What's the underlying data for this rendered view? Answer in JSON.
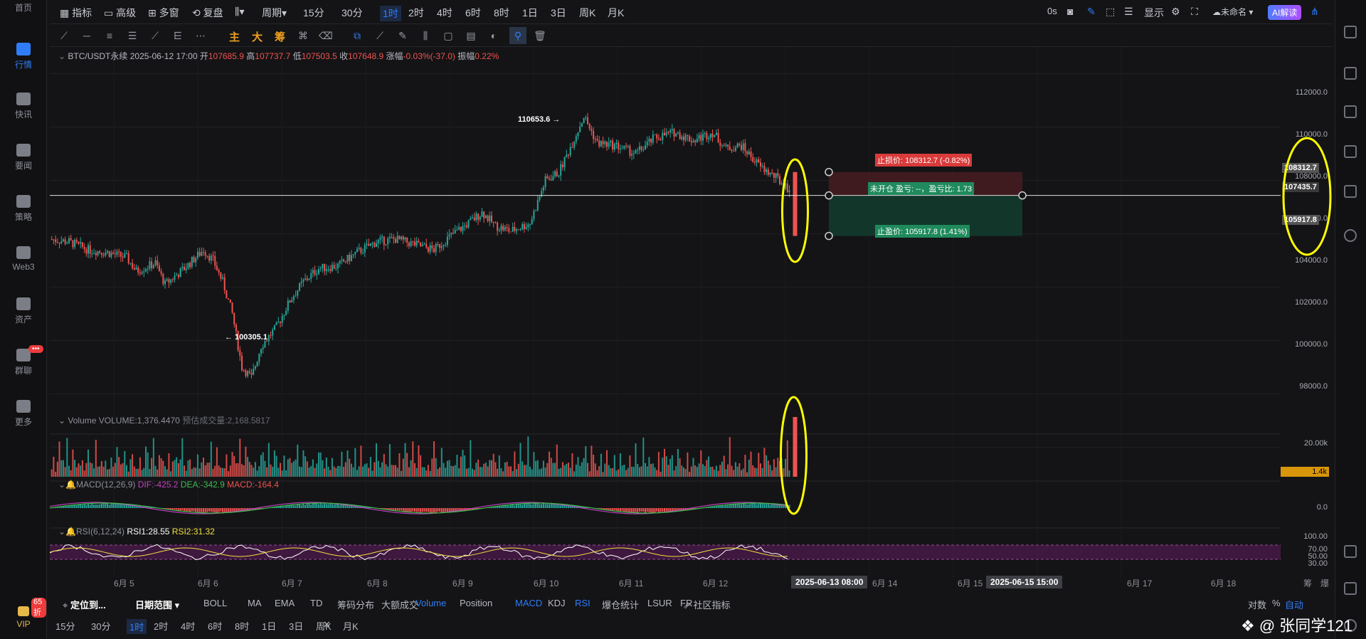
{
  "nav": {
    "items": [
      {
        "label": "首页"
      },
      {
        "label": "行情"
      },
      {
        "label": "快讯"
      },
      {
        "label": "要闻"
      },
      {
        "label": "策略"
      },
      {
        "label": "Web3"
      },
      {
        "label": "资产"
      },
      {
        "label": "群聊"
      },
      {
        "label": "更多"
      }
    ],
    "chat_badge": "•••",
    "vip_badge": "65折",
    "vip": "VIP"
  },
  "toolbar": {
    "items": [
      "指标",
      "高级",
      "多窗",
      "复盘",
      "周期"
    ],
    "intervals": [
      "15分",
      "30分",
      "1时",
      "2时",
      "4时",
      "6时",
      "8时",
      "1日",
      "3日",
      "周K",
      "月K"
    ],
    "selected": "1时",
    "right_items": [
      "0s",
      "显示",
      "未命名",
      "AI解读"
    ]
  },
  "drawbar": {
    "labels": [
      "主",
      "大",
      "筹"
    ]
  },
  "info": {
    "symbol": "BTC/USDT永续",
    "datetime": "2025-06-12 17:00",
    "open_label": "开",
    "open": "107685.9",
    "high_label": "高",
    "high": "107737.7",
    "low_label": "低",
    "low": "107503.5",
    "close_label": "收",
    "close": "107648.9",
    "change_label": "涨幅",
    "change": "-0.03%(-37.0)",
    "amp_label": "振幅",
    "amp": "0.22%"
  },
  "annotations": {
    "high": "110653.6 →",
    "low": "← 100305.1"
  },
  "position_tool": {
    "stop_loss": "止损价: 108312.7 (-0.82%)",
    "status": "未开仓 盈亏: --，盈亏比: 1.73",
    "take_profit": "止盈价: 105917.8 (1.41%)"
  },
  "price_axis": {
    "ticks": [
      "112000.0",
      "110000.0",
      "108000.0",
      "106000.0",
      "104000.0",
      "102000.0",
      "100000.0",
      "98000.0"
    ],
    "tags": {
      "sl": "108312.7",
      "cur": "107435.7",
      "tp": "105917.8"
    }
  },
  "volume": {
    "title": "Volume",
    "value": "VOLUME:1,376.4470",
    "est": "预估成交量:2,168.5817",
    "tick": "20.00k",
    "tag": "1.4k"
  },
  "macd": {
    "title": "MACD(12,26,9)",
    "dif": "DIF:-425.2",
    "dea": "DEA:-342.9",
    "macd": "MACD:-164.4",
    "tick": "0.0"
  },
  "rsi": {
    "title": "RSI(6,12,24)",
    "rsi1": "RSI1:28.55",
    "rsi2": "RSI2:31.32",
    "ticks": [
      "100.00",
      "70.00",
      "50.00",
      "30.00"
    ]
  },
  "xaxis": {
    "labels": [
      "6月 5",
      "6月 6",
      "6月 7",
      "6月 8",
      "6月 9",
      "6月 10",
      "6月 11",
      "6月 12",
      "6月 14",
      "6月 15",
      "6月 17",
      "6月 18"
    ],
    "hl1": "2025-06-13 08:00",
    "hl2": "2025-06-15 15:00",
    "right": [
      "筹",
      "爆"
    ]
  },
  "bottom": {
    "locate": "定位到...",
    "range": "日期范围",
    "indicators": [
      "BOLL",
      "MA",
      "EMA",
      "TD",
      "筹码分布",
      "大额成交"
    ],
    "sub": [
      "Volume",
      "Position",
      "MACD",
      "KDJ",
      "RSI",
      "爆仓统计",
      "LSUR",
      "FR"
    ],
    "community": "社区指标",
    "scale": [
      "对数",
      "%",
      "自动"
    ],
    "intervals": [
      "15分",
      "30分",
      "1时",
      "2时",
      "4时",
      "6时",
      "8时",
      "1日",
      "3日",
      "周K",
      "月K"
    ],
    "close": "✕",
    "watermark": "@ 张同学121"
  },
  "colors": {
    "up": "#26a69a",
    "down": "#ef5350",
    "accent": "#2f7df6",
    "highlight": "#ffff00"
  },
  "chart_data": {
    "type": "candlestick",
    "symbol": "BTC/USDT永续",
    "interval": "1时",
    "x_range": [
      "6月 5",
      "6月 12 17:00"
    ],
    "ylim": [
      97000,
      113000
    ],
    "high_marker": 110653.6,
    "low_marker": 100305.1,
    "last_close": 107648.9,
    "stop_loss": 108312.7,
    "entry": 107435.7,
    "take_profit": 105917.8,
    "path": [
      [
        0,
        105800
      ],
      [
        10,
        105700
      ],
      [
        20,
        105400
      ],
      [
        30,
        105300
      ],
      [
        40,
        105100
      ],
      [
        45,
        104600
      ],
      [
        55,
        104900
      ],
      [
        60,
        104100
      ],
      [
        70,
        104700
      ],
      [
        80,
        105400
      ],
      [
        85,
        105000
      ],
      [
        90,
        104200
      ],
      [
        95,
        103000
      ],
      [
        100,
        101000
      ],
      [
        105,
        100600
      ],
      [
        110,
        101800
      ],
      [
        118,
        102500
      ],
      [
        125,
        103500
      ],
      [
        132,
        104200
      ],
      [
        140,
        104700
      ],
      [
        150,
        104800
      ],
      [
        160,
        105300
      ],
      [
        170,
        105700
      ],
      [
        180,
        105800
      ],
      [
        190,
        105600
      ],
      [
        200,
        105400
      ],
      [
        210,
        106000
      ],
      [
        218,
        106400
      ],
      [
        225,
        106800
      ],
      [
        232,
        106300
      ],
      [
        240,
        106100
      ],
      [
        250,
        106400
      ],
      [
        258,
        108000
      ],
      [
        265,
        108300
      ],
      [
        272,
        109400
      ],
      [
        278,
        110400
      ],
      [
        285,
        109400
      ],
      [
        295,
        109300
      ],
      [
        305,
        109000
      ],
      [
        315,
        109600
      ],
      [
        325,
        109800
      ],
      [
        335,
        109500
      ],
      [
        345,
        109800
      ],
      [
        352,
        109200
      ],
      [
        360,
        109300
      ],
      [
        370,
        108500
      ],
      [
        378,
        108100
      ],
      [
        385,
        107648.9
      ]
    ],
    "volume_sample": [
      1.3,
      1.1,
      2.2,
      0.9,
      1.7,
      3.0,
      2.1,
      1.4,
      1.6,
      3.4,
      1.2,
      1.0,
      2.8,
      2.0,
      1.4
    ]
  }
}
